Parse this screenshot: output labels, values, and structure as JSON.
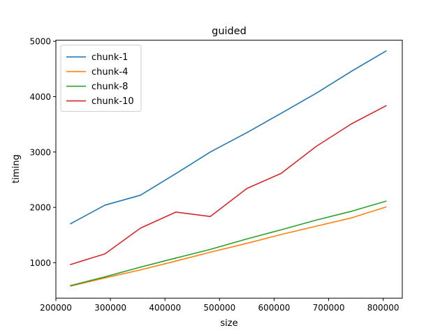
{
  "chart_data": {
    "type": "line",
    "title": "guided",
    "xlabel": "size",
    "ylabel": "timing",
    "xlim": [
      200000,
      835000
    ],
    "ylim": [
      360,
      5020
    ],
    "xticks": [
      200000,
      300000,
      400000,
      500000,
      600000,
      700000,
      800000
    ],
    "yticks": [
      1000,
      2000,
      3000,
      4000,
      5000
    ],
    "grid": false,
    "legend_position": "upper-left",
    "x": [
      226000,
      290000,
      355000,
      420000,
      483000,
      550000,
      613000,
      677000,
      742000,
      806000
    ],
    "series": [
      {
        "name": "chunk-1",
        "color": "#1f77b4",
        "values": [
          1700,
          2040,
          2220,
          2610,
          3000,
          3350,
          3700,
          4060,
          4460,
          4830
        ]
      },
      {
        "name": "chunk-4",
        "color": "#ff7f0e",
        "values": [
          575,
          725,
          870,
          1030,
          1190,
          1350,
          1510,
          1660,
          1810,
          2010
        ]
      },
      {
        "name": "chunk-8",
        "color": "#2ca02c",
        "values": [
          585,
          745,
          920,
          1085,
          1240,
          1430,
          1595,
          1770,
          1930,
          2115
        ]
      },
      {
        "name": "chunk-10",
        "color": "#d62728",
        "values": [
          965,
          1160,
          1625,
          1915,
          1835,
          2340,
          2615,
          3100,
          3510,
          3840
        ]
      }
    ]
  }
}
